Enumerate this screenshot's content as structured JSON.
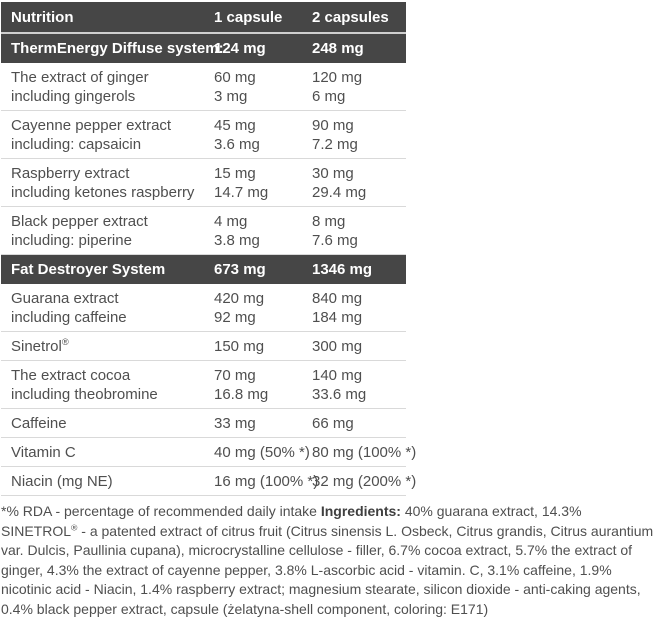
{
  "colors": {
    "header_bg": "#464646",
    "header_text": "#ffffff",
    "body_text": "#4f4f4f",
    "row_divider": "#d9d9d9"
  },
  "table": {
    "header": {
      "nutrition": "Nutrition",
      "one_capsule": "1 capsule",
      "two_capsules": "2 capsules"
    },
    "rows": [
      {
        "type": "section",
        "name": "ThermEnergy Diffuse system:",
        "v1": "124 mg",
        "v2": "248 mg"
      },
      {
        "type": "item",
        "name": "The extract of ginger",
        "sub": "including gingerols",
        "v1": "60 mg",
        "sv1": "3 mg",
        "v2": "120 mg",
        "sv2": "6 mg"
      },
      {
        "type": "item",
        "name": "Cayenne pepper extract",
        "sub": "including: capsaicin",
        "v1": "45 mg",
        "sv1": "3.6 mg",
        "v2": "90 mg",
        "sv2": "7.2 mg"
      },
      {
        "type": "item",
        "name": "Raspberry extract",
        "sub": "including ketones raspberry",
        "v1": "15 mg",
        "sv1": "14.7 mg",
        "v2": "30 mg",
        "sv2": "29.4 mg"
      },
      {
        "type": "item",
        "name": "Black pepper extract",
        "sub": "including: piperine",
        "v1": "4 mg",
        "sv1": "3.8 mg",
        "v2": "8 mg",
        "sv2": "7.6 mg"
      },
      {
        "type": "section",
        "name": "Fat Destroyer System",
        "v1": "673 mg",
        "v2": "1346 mg"
      },
      {
        "type": "item",
        "name": "Guarana extract",
        "sub": "including caffeine",
        "v1": "420 mg",
        "sv1": "92 mg",
        "v2": "840 mg",
        "sv2": "184 mg"
      },
      {
        "type": "item",
        "name": "Sinetrol®",
        "v1": "150 mg",
        "v2": "300 mg"
      },
      {
        "type": "item",
        "name": "The extract cocoa",
        "sub": "including theobromine",
        "v1": "70 mg",
        "sv1": "16.8 mg",
        "v2": "140 mg",
        "sv2": "33.6 mg"
      },
      {
        "type": "item",
        "name": "Caffeine",
        "v1": "33 mg",
        "v2": "66 mg"
      },
      {
        "type": "item",
        "name": "Vitamin C",
        "v1": "40 mg (50% *)",
        "v2": "80 mg (100% *)"
      },
      {
        "type": "item",
        "name": "Niacin (mg NE)",
        "v1": "16 mg (100% *)",
        "v2": "32 mg (200% *)"
      }
    ]
  },
  "footnote": {
    "rda_note": "*% RDA - percentage of recommended daily intake ",
    "ingredients_label": "Ingredients:",
    "ingredients_text": " 40% guarana extract, 14.3% SINETROL® - a patented extract of citrus fruit (Citrus sinensis L. Osbeck, Citrus grandis, Citrus aurantium var. Dulcis, Paullinia cupana), microcrystalline cellulose - filler, 6.7% cocoa extract, 5.7% the extract of ginger, 4.3% the extract of cayenne pepper, 3.8% L-ascorbic acid - vitamin. C, 3.1% caffeine, 1.9% nicotinic acid - Niacin, 1.4% raspberry extract; magnesium stearate, silicon dioxide - anti-caking agents, 0.4% black pepper extract, capsule (żelatyna-shell component, coloring: E171)"
  }
}
